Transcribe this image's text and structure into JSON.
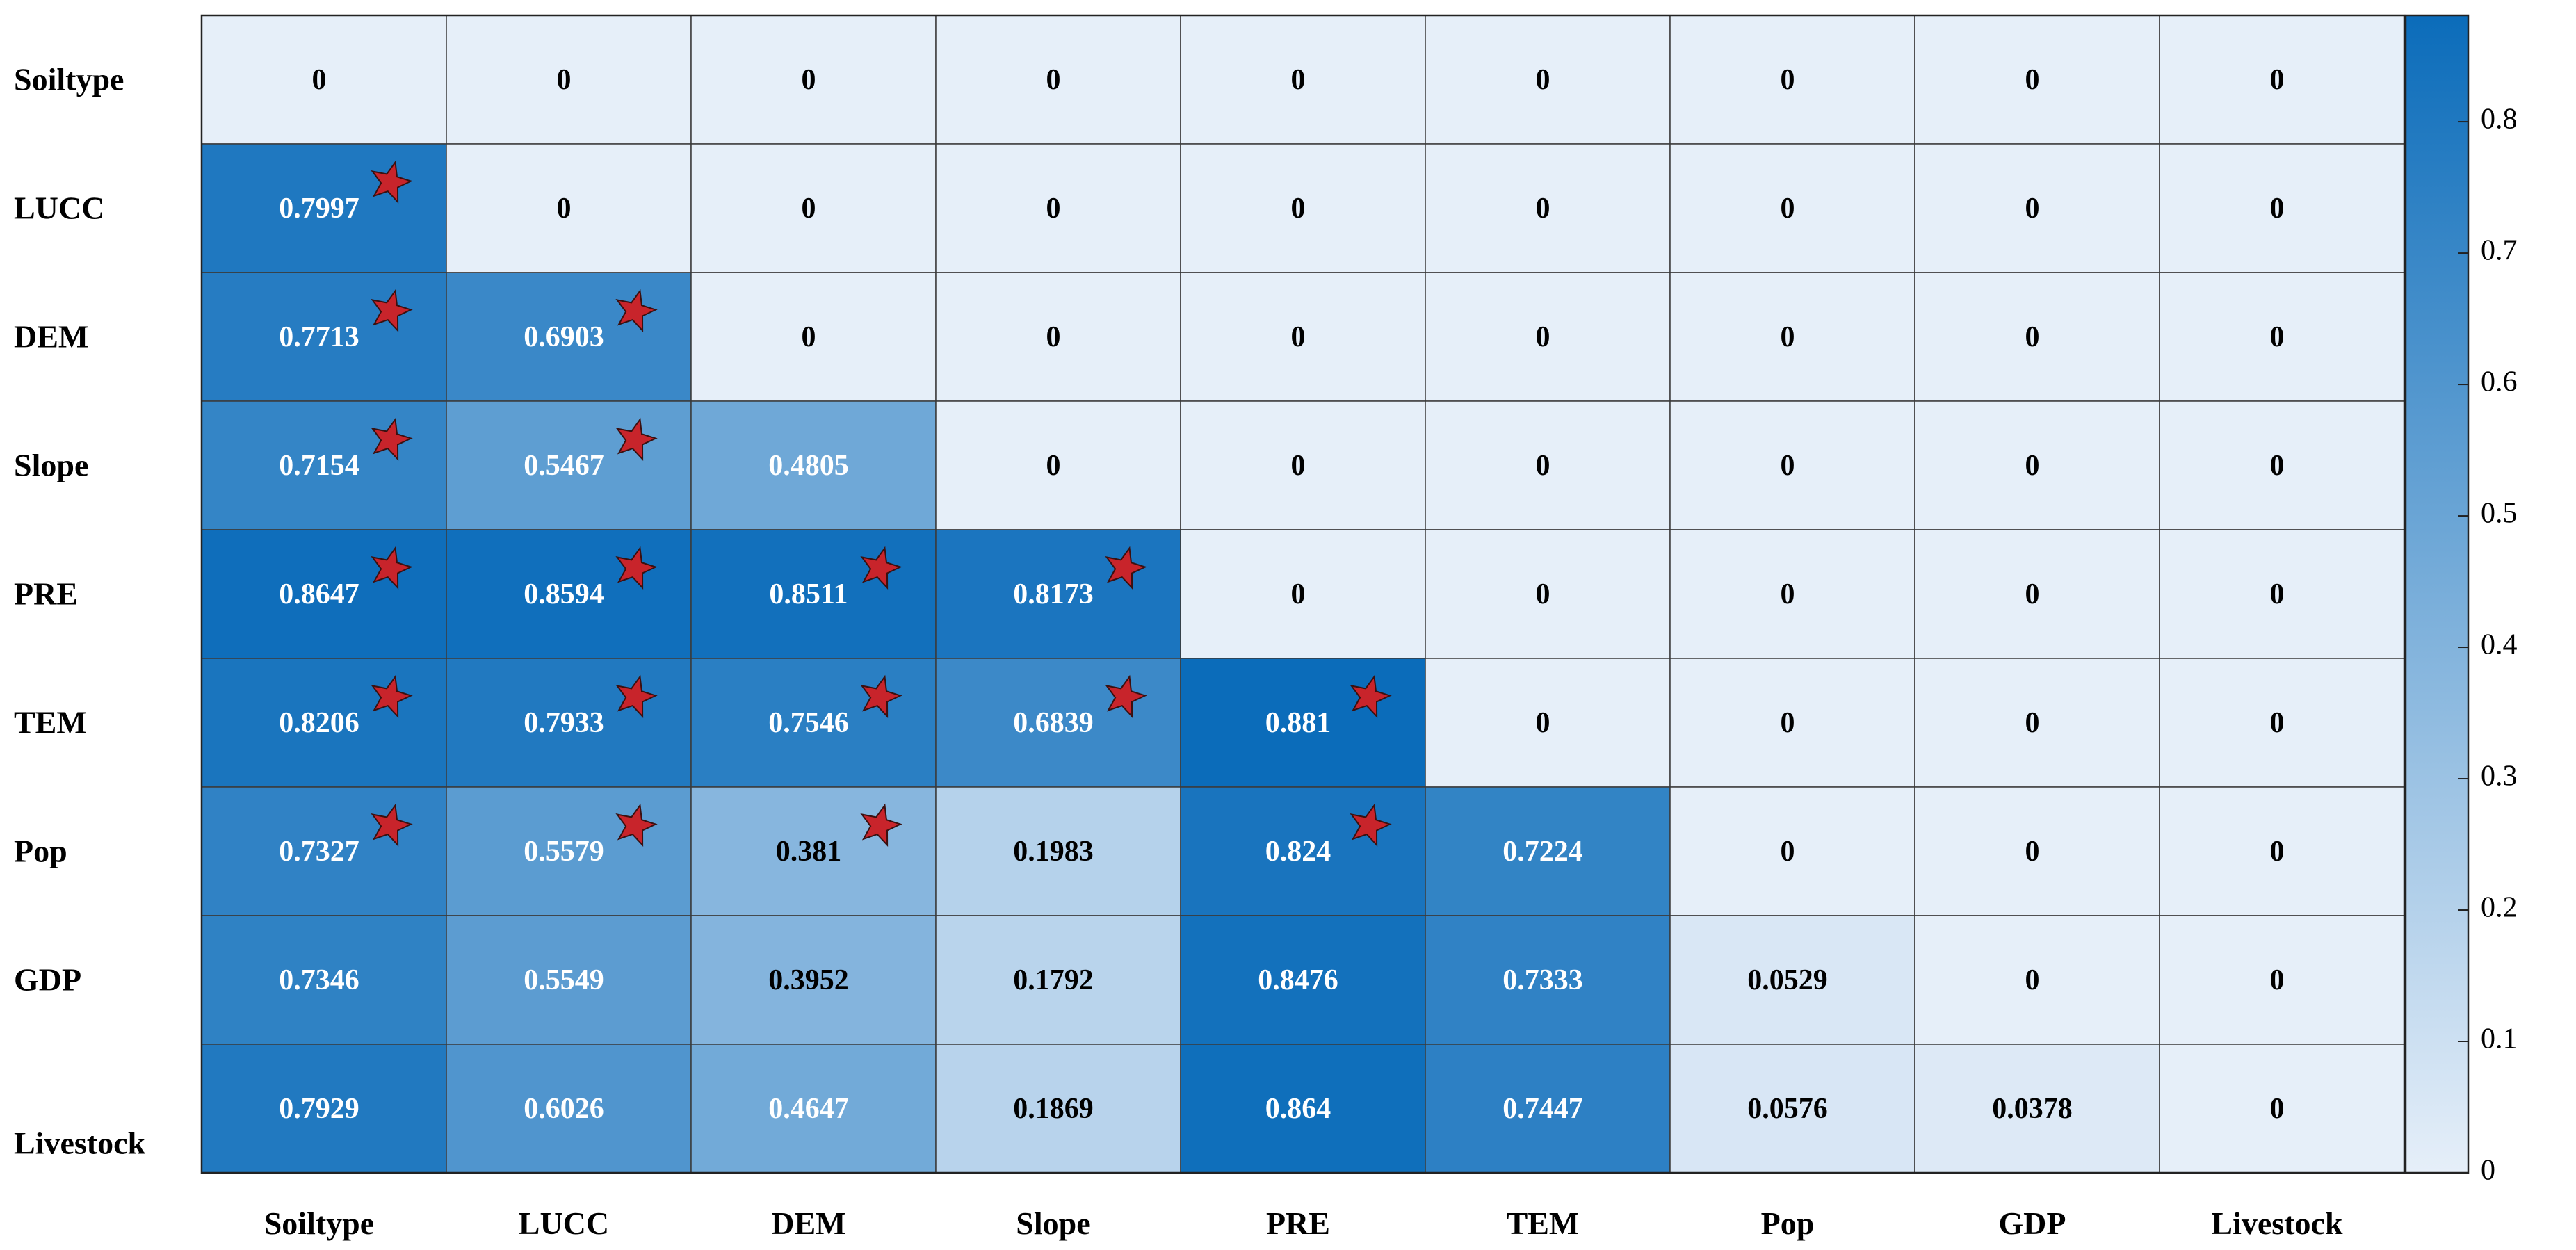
{
  "chart_data": {
    "type": "heatmap",
    "title": "",
    "xlabel": "",
    "ylabel": "",
    "x_labels": [
      "Soiltype",
      "LUCC",
      "DEM",
      "Slope",
      "PRE",
      "TEM",
      "Pop",
      "GDP",
      "Livestock"
    ],
    "y_labels": [
      "Soiltype",
      "LUCC",
      "DEM",
      "Slope",
      "PRE",
      "TEM",
      "Pop",
      "GDP",
      "Livestock"
    ],
    "values": [
      [
        "0",
        "0",
        "0",
        "0",
        "0",
        "0",
        "0",
        "0",
        "0"
      ],
      [
        "0.7997",
        "0",
        "0",
        "0",
        "0",
        "0",
        "0",
        "0",
        "0"
      ],
      [
        "0.7713",
        "0.6903",
        "0",
        "0",
        "0",
        "0",
        "0",
        "0",
        "0"
      ],
      [
        "0.7154",
        "0.5467",
        "0.4805",
        "0",
        "0",
        "0",
        "0",
        "0",
        "0"
      ],
      [
        "0.8647",
        "0.8594",
        "0.8511",
        "0.8173",
        "0",
        "0",
        "0",
        "0",
        "0"
      ],
      [
        "0.8206",
        "0.7933",
        "0.7546",
        "0.6839",
        "0.881",
        "0",
        "0",
        "0",
        "0"
      ],
      [
        "0.7327",
        "0.5579",
        "0.381",
        "0.1983",
        "0.824",
        "0.7224",
        "0",
        "0",
        "0"
      ],
      [
        "0.7346",
        "0.5549",
        "0.3952",
        "0.1792",
        "0.8476",
        "0.7333",
        "0.0529",
        "0",
        "0"
      ],
      [
        "0.7929",
        "0.6026",
        "0.4647",
        "0.1869",
        "0.864",
        "0.7447",
        "0.0576",
        "0.0378",
        "0"
      ]
    ],
    "significant": [
      [
        false,
        false,
        false,
        false,
        false,
        false,
        false,
        false,
        false
      ],
      [
        true,
        false,
        false,
        false,
        false,
        false,
        false,
        false,
        false
      ],
      [
        true,
        true,
        false,
        false,
        false,
        false,
        false,
        false,
        false
      ],
      [
        true,
        true,
        false,
        false,
        false,
        false,
        false,
        false,
        false
      ],
      [
        true,
        true,
        true,
        true,
        false,
        false,
        false,
        false,
        false
      ],
      [
        true,
        true,
        true,
        true,
        true,
        false,
        false,
        false,
        false
      ],
      [
        true,
        true,
        true,
        false,
        true,
        false,
        false,
        false,
        false
      ],
      [
        false,
        false,
        false,
        false,
        false,
        false,
        false,
        false,
        false
      ],
      [
        false,
        false,
        false,
        false,
        false,
        false,
        false,
        false,
        false
      ]
    ],
    "colorbar": {
      "min": 0,
      "max": 0.881,
      "ticks": [
        "0",
        "0.1",
        "0.2",
        "0.3",
        "0.4",
        "0.5",
        "0.6",
        "0.7",
        "0.8"
      ],
      "color_low": "#e6eff9",
      "color_high": "#0b6cba"
    },
    "star_color": "#c8242b",
    "grid": true
  }
}
